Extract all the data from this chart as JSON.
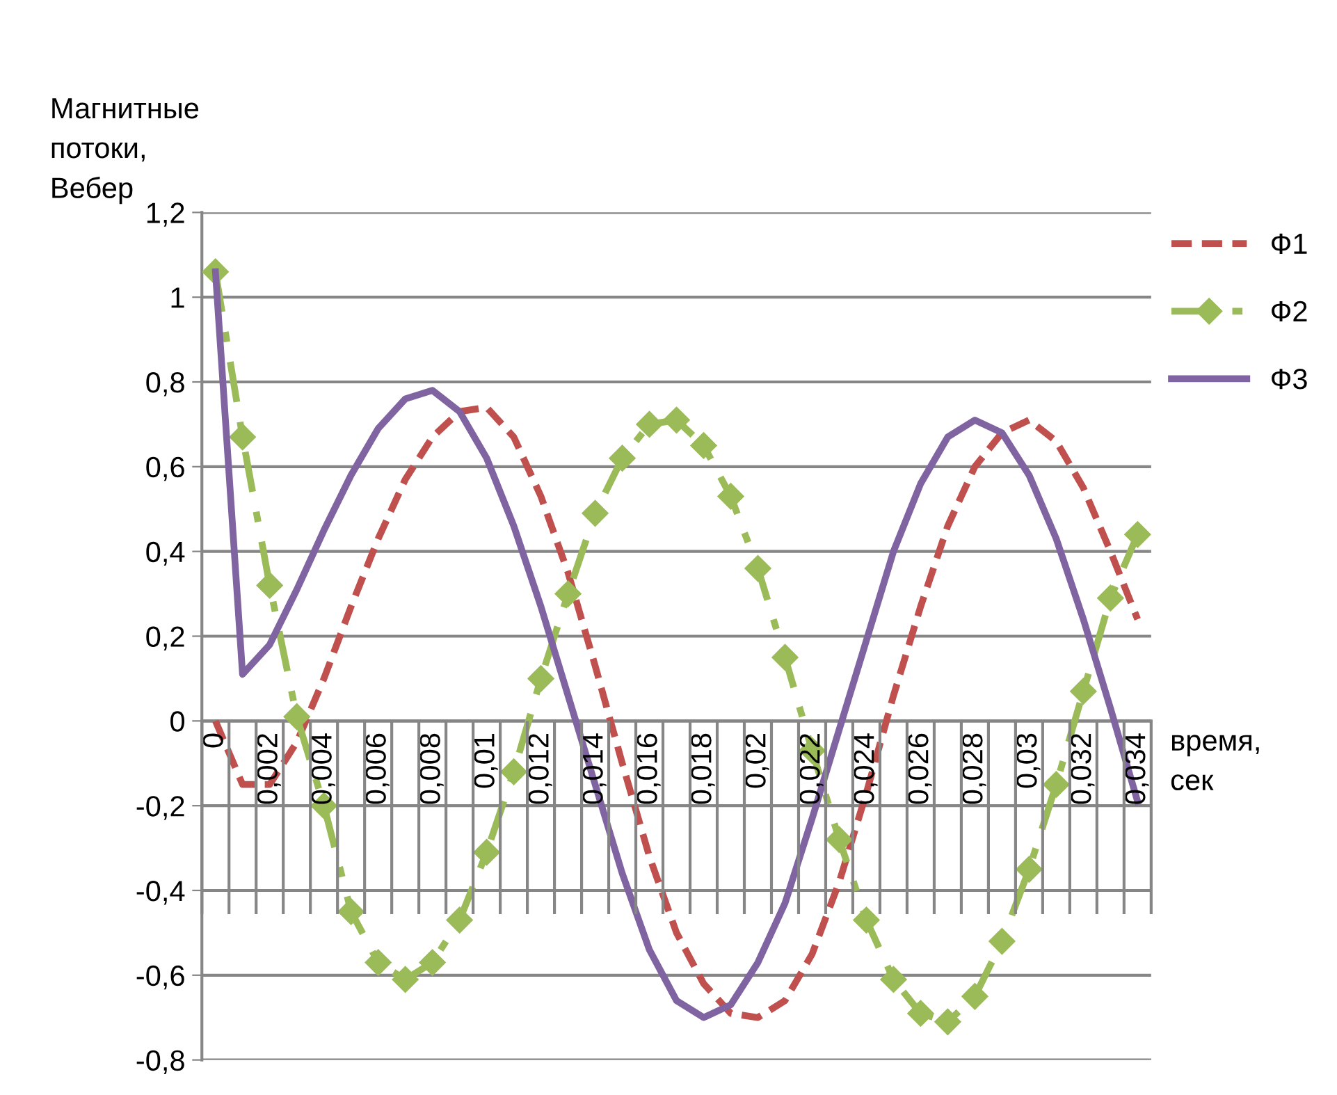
{
  "chart_data": {
    "type": "line",
    "ylabel": "Магнитные\nпотоки,\nВебер",
    "xlabel": "время,\nсек",
    "categories": [
      "0",
      null,
      "0,002",
      null,
      "0,004",
      null,
      "0,006",
      null,
      "0,008",
      null,
      "0,01",
      null,
      "0,012",
      null,
      "0,014",
      null,
      "0,016",
      null,
      "0,018",
      null,
      "0,02",
      null,
      "0,022",
      null,
      "0,024",
      null,
      "0,026",
      null,
      "0,028",
      null,
      "0,03",
      null,
      "0,032",
      null,
      "0,034"
    ],
    "series": [
      {
        "name": "Ф1",
        "color": "#c0504d",
        "line_style": "dashed",
        "marker": "none",
        "values": [
          0,
          -0.15,
          -0.15,
          -0.05,
          0.1,
          0.27,
          0.43,
          0.57,
          0.67,
          0.73,
          0.74,
          0.67,
          0.53,
          0.35,
          0.13,
          -0.1,
          -0.32,
          -0.5,
          -0.62,
          -0.69,
          -0.7,
          -0.66,
          -0.55,
          -0.38,
          -0.17,
          0.06,
          0.27,
          0.46,
          0.6,
          0.68,
          0.71,
          0.66,
          0.55,
          0.4,
          0.24
        ]
      },
      {
        "name": "Ф2",
        "color": "#9bbb59",
        "line_style": "dashdot",
        "marker": "diamond",
        "values": [
          1.06,
          0.67,
          0.32,
          0.01,
          -0.2,
          -0.45,
          -0.57,
          -0.61,
          -0.57,
          -0.47,
          -0.31,
          -0.12,
          0.1,
          0.3,
          0.49,
          0.62,
          0.7,
          0.71,
          0.65,
          0.53,
          0.36,
          0.15,
          -0.07,
          -0.28,
          -0.47,
          -0.61,
          -0.69,
          -0.71,
          -0.65,
          -0.52,
          -0.35,
          -0.15,
          0.07,
          0.29,
          0.44
        ]
      },
      {
        "name": "Ф3",
        "color": "#8064a2",
        "line_style": "solid",
        "marker": "none",
        "values": [
          1.06,
          0.11,
          0.18,
          0.31,
          0.45,
          0.58,
          0.69,
          0.76,
          0.78,
          0.73,
          0.62,
          0.46,
          0.27,
          0.06,
          -0.15,
          -0.36,
          -0.54,
          -0.66,
          -0.7,
          -0.67,
          -0.57,
          -0.43,
          -0.23,
          -0.02,
          0.19,
          0.4,
          0.56,
          0.67,
          0.71,
          0.68,
          0.58,
          0.43,
          0.24,
          0.03,
          -0.19
        ]
      }
    ],
    "ylim": [
      -0.8,
      1.2
    ],
    "yticks": [
      {
        "value": -0.8,
        "label": "-0,8"
      },
      {
        "value": -0.6,
        "label": "-0,6"
      },
      {
        "value": -0.4,
        "label": "-0,4"
      },
      {
        "value": -0.2,
        "label": "-0,2"
      },
      0,
      {
        "value": 0.2,
        "label": "0,2"
      },
      {
        "value": 0.4,
        "label": "0,4"
      },
      {
        "value": 0.6,
        "label": "0,6"
      },
      {
        "value": 0.8,
        "label": "0,8"
      },
      1,
      {
        "value": 1.2,
        "label": "1,2"
      }
    ],
    "grid": "y",
    "legend": "right"
  }
}
